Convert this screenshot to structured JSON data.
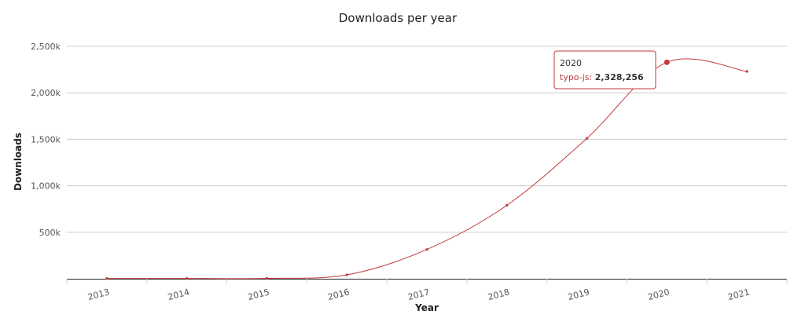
{
  "chart_data": {
    "type": "line",
    "title": "Downloads per year",
    "xlabel": "Year",
    "ylabel": "Downloads",
    "x": [
      "2013",
      "2014",
      "2015",
      "2016",
      "2017",
      "2018",
      "2019",
      "2020",
      "2021"
    ],
    "series": [
      {
        "name": "typo-js",
        "color": "#c0393b",
        "values": [
          3000,
          3000,
          4000,
          42000,
          315000,
          790000,
          1510000,
          2328256,
          2230000
        ]
      }
    ],
    "ylim": [
      0,
      2500000
    ],
    "yticks": [
      {
        "value": 500000,
        "label": "500k"
      },
      {
        "value": 1000000,
        "label": "1,000k"
      },
      {
        "value": 1500000,
        "label": "1,500k"
      },
      {
        "value": 2000000,
        "label": "2,000k"
      },
      {
        "value": 2500000,
        "label": "2,500k"
      }
    ],
    "grid": true,
    "legend": "none"
  },
  "tooltip": {
    "category": "2020",
    "series_label": "typo-js: ",
    "value": "2,328,256"
  }
}
